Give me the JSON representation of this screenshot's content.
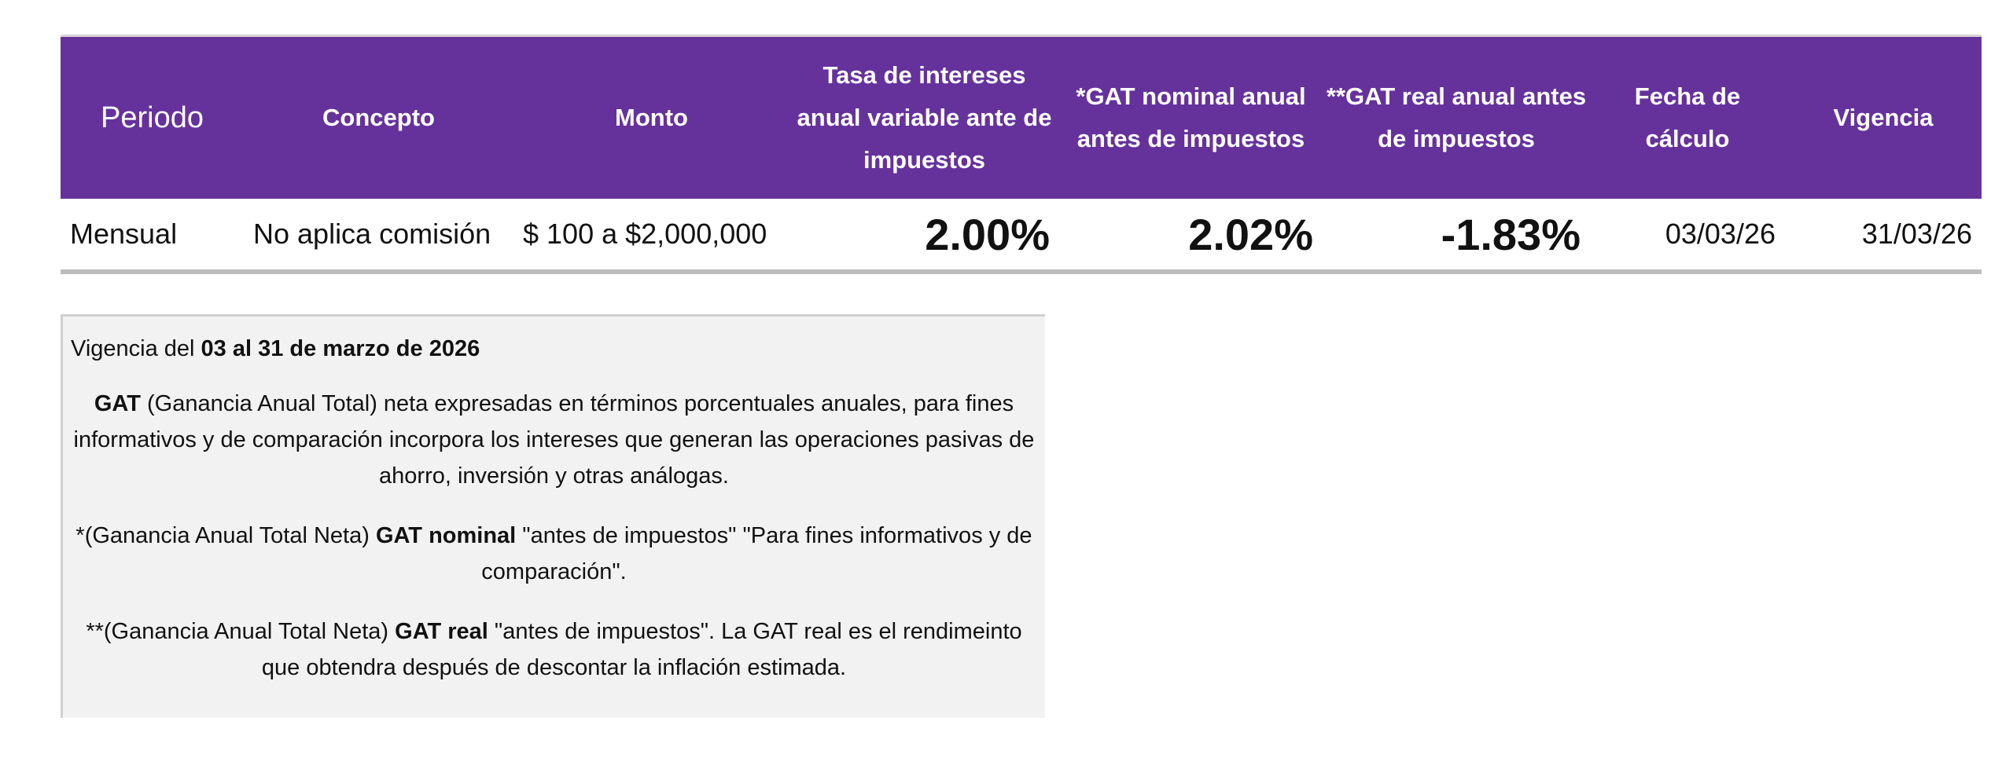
{
  "table": {
    "headers": [
      "Periodo",
      "Concepto",
      "Monto",
      "Tasa de intereses anual variable ante de impuestos",
      "*GAT nominal anual antes de impuestos",
      "**GAT real anual antes de impuestos",
      "Fecha de cálculo",
      "Vigencia"
    ],
    "rows": [
      [
        "Mensual",
        "No aplica comisión",
        "$ 100 a $2,000,000",
        "2.00%",
        "2.02%",
        "-1.83%",
        "03/03/26",
        "31/03/26"
      ]
    ]
  },
  "notes": [
    [
      {
        "t": "Vigencia del "
      },
      {
        "t": "03 al 31 de marzo de 2026",
        "b": true
      }
    ],
    [
      {
        "t": "GAT",
        "b": true
      },
      {
        "t": " (Ganancia Anual Total) neta expresadas en términos porcentuales anuales, para fines informativos y de comparación incorpora los intereses que generan las operaciones pasivas de ahorro, inversión y otras análogas."
      }
    ],
    [
      {
        "t": "*(Ganancia Anual Total Neta) "
      },
      {
        "t": "GAT nominal",
        "b": true
      },
      {
        "t": " \"antes de impuestos\" \"Para fines informativos y de comparación\"."
      }
    ],
    [
      {
        "t": "**(Ganancia Anual Total Neta) "
      },
      {
        "t": "GAT real",
        "b": true
      },
      {
        "t": " \"antes de impuestos\". La GAT real es el rendimeinto que obtendra después de descontar la inflación estimada."
      }
    ]
  ]
}
